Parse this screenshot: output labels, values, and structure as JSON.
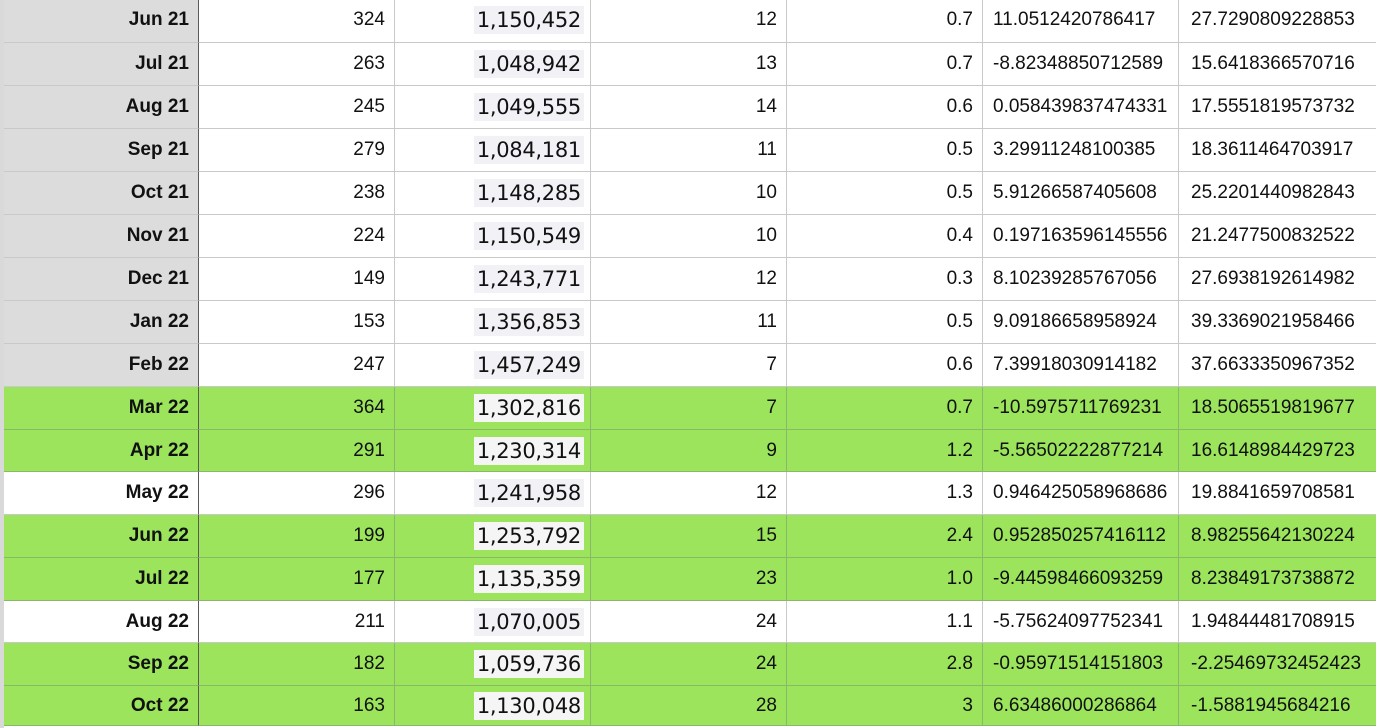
{
  "colors": {
    "highlight_green": "#9be45c",
    "header_grey": "#dcdcdc"
  },
  "rows": [
    {
      "label": "Jun 21",
      "a": "324",
      "b": "1,150,452",
      "c": "12",
      "d": "0.7",
      "e": "11.0512420786417",
      "f": "27.7290809228853",
      "style": "grey"
    },
    {
      "label": "Jul 21",
      "a": "263",
      "b": "1,048,942",
      "c": "13",
      "d": "0.7",
      "e": "-8.82348850712589",
      "f": "15.6418366570716",
      "style": "grey"
    },
    {
      "label": "Aug 21",
      "a": "245",
      "b": "1,049,555",
      "c": "14",
      "d": "0.6",
      "e": "0.058439837474331",
      "f": "17.5551819573732",
      "style": "grey"
    },
    {
      "label": "Sep 21",
      "a": "279",
      "b": "1,084,181",
      "c": "11",
      "d": "0.5",
      "e": "3.29911248100385",
      "f": "18.3611464703917",
      "style": "grey"
    },
    {
      "label": "Oct 21",
      "a": "238",
      "b": "1,148,285",
      "c": "10",
      "d": "0.5",
      "e": "5.91266587405608",
      "f": "25.2201440982843",
      "style": "grey"
    },
    {
      "label": "Nov 21",
      "a": "224",
      "b": "1,150,549",
      "c": "10",
      "d": "0.4",
      "e": "0.197163596145556",
      "f": "21.2477500832522",
      "style": "grey"
    },
    {
      "label": "Dec 21",
      "a": "149",
      "b": "1,243,771",
      "c": "12",
      "d": "0.3",
      "e": "8.10239285767056",
      "f": "27.6938192614982",
      "style": "grey"
    },
    {
      "label": "Jan 22",
      "a": "153",
      "b": "1,356,853",
      "c": "11",
      "d": "0.5",
      "e": "9.09186658958924",
      "f": "39.3369021958466",
      "style": "grey"
    },
    {
      "label": "Feb 22",
      "a": "247",
      "b": "1,457,249",
      "c": "7",
      "d": "0.6",
      "e": "7.39918030914182",
      "f": "37.6633350967352",
      "style": "grey"
    },
    {
      "label": "Mar 22",
      "a": "364",
      "b": "1,302,816",
      "c": "7",
      "d": "0.7",
      "e": "-10.5975711769231",
      "f": "18.5065519819677",
      "style": "green"
    },
    {
      "label": "Apr 22",
      "a": "291",
      "b": "1,230,314",
      "c": "9",
      "d": "1.2",
      "e": "-5.56502222877214",
      "f": "16.6148984429723",
      "style": "green"
    },
    {
      "label": "May 22",
      "a": "296",
      "b": "1,241,958",
      "c": "12",
      "d": "1.3",
      "e": "0.946425058968686",
      "f": "19.8841659708581",
      "style": "white"
    },
    {
      "label": "Jun 22",
      "a": "199",
      "b": "1,253,792",
      "c": "15",
      "d": "2.4",
      "e": "0.952850257416112",
      "f": "8.98255642130224",
      "style": "green"
    },
    {
      "label": "Jul 22",
      "a": "177",
      "b": "1,135,359",
      "c": "23",
      "d": "1.0",
      "e": "-9.44598466093259",
      "f": "8.23849173738872",
      "style": "green"
    },
    {
      "label": "Aug 22",
      "a": "211",
      "b": "1,070,005",
      "c": "24",
      "d": "1.1",
      "e": "-5.75624097752341",
      "f": "1.94844481708915",
      "style": "white"
    },
    {
      "label": "Sep 22",
      "a": "182",
      "b": "1,059,736",
      "c": "24",
      "d": "2.8",
      "e": "-0.95971514151803",
      "f": "-2.25469732452423",
      "style": "green"
    },
    {
      "label": "Oct 22",
      "a": "163",
      "b": "1,130,048",
      "c": "28",
      "d": "3",
      "e": "6.63486000286864",
      "f": "-1.5881945684216",
      "style": "green"
    }
  ]
}
